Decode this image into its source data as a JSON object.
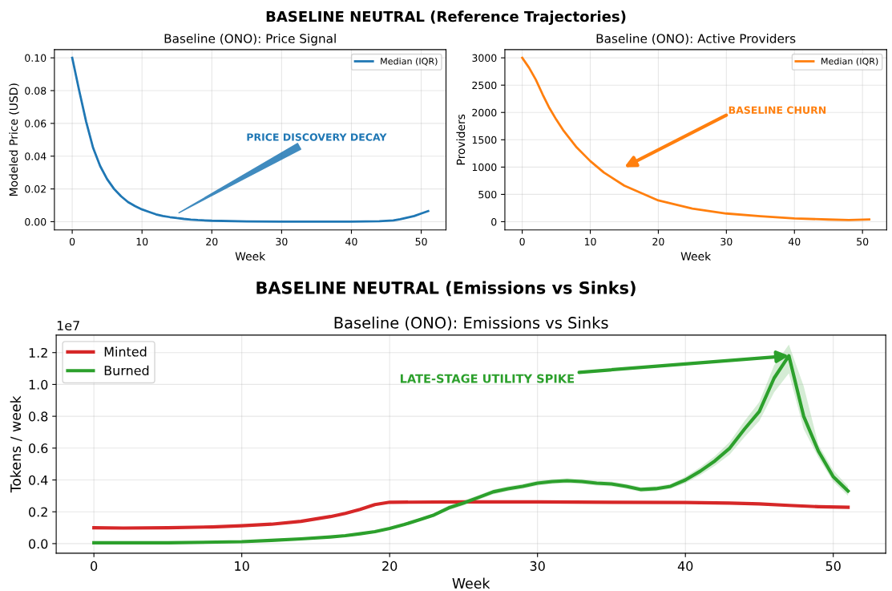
{
  "chart_data": [
    {
      "type": "line",
      "title": "Baseline (ONO): Price Signal",
      "xlabel": "Week",
      "ylabel": "Modeled Price (USD)",
      "xlim": [
        -2.55,
        53.55
      ],
      "ylim": [
        -0.005,
        0.105
      ],
      "xticks": [
        0,
        10,
        20,
        30,
        40,
        50
      ],
      "yticks": [
        {
          "value": 0,
          "label": "0.00"
        },
        {
          "value": 0.02,
          "label": "0.02"
        },
        {
          "value": 0.04,
          "label": "0.04"
        },
        {
          "value": 0.06,
          "label": "0.06"
        },
        {
          "value": 0.08,
          "label": "0.08"
        },
        {
          "value": 0.1,
          "label": "0.10"
        }
      ],
      "grid": true,
      "legend": "top right",
      "marker": "none",
      "line_style": "solid",
      "annotations": [
        "BASELINE NEUTRAL (Reference Trajectories)",
        "PRICE DISCOVERY DECAY"
      ],
      "series": [
        {
          "name": "Median (IQR)",
          "color": "#1f77b4",
          "x": [
            0,
            1,
            2,
            3,
            4,
            5,
            6,
            7,
            8,
            9,
            10,
            11,
            12,
            13,
            14,
            15,
            16,
            17,
            18,
            20,
            25,
            30,
            40,
            44,
            46,
            47,
            48,
            49,
            50,
            51
          ],
          "values": [
            0.1,
            0.08,
            0.061,
            0.045,
            0.034,
            0.026,
            0.02,
            0.0155,
            0.012,
            0.0095,
            0.0075,
            0.006,
            0.0045,
            0.0035,
            0.0028,
            0.0022,
            0.0017,
            0.0013,
            0.001,
            0.0006,
            0.0002,
            0.0001,
            0.0001,
            0.0003,
            0.0008,
            0.0015,
            0.0025,
            0.0035,
            0.005,
            0.0065
          ],
          "lower": [
            0.1,
            0.079,
            0.06,
            0.044,
            0.033,
            0.025,
            0.019,
            0.015,
            0.0117,
            0.0093,
            0.0074,
            0.006,
            0.0045,
            0.0035,
            0.0028,
            0.0022,
            0.0017,
            0.0013,
            0.001,
            0.0006,
            0.0002,
            0.0001,
            0.0001,
            0.0003,
            0.0008,
            0.0015,
            0.0025,
            0.0035,
            0.005,
            0.0065
          ],
          "upper": [
            0.1,
            0.081,
            0.062,
            0.046,
            0.035,
            0.027,
            0.021,
            0.016,
            0.0123,
            0.0097,
            0.0076,
            0.006,
            0.0045,
            0.0035,
            0.0028,
            0.0022,
            0.0017,
            0.0013,
            0.001,
            0.0006,
            0.0002,
            0.0001,
            0.0001,
            0.0003,
            0.0008,
            0.0015,
            0.0025,
            0.0035,
            0.005,
            0.0065
          ]
        }
      ]
    },
    {
      "type": "line",
      "title": "Baseline (ONO): Active Providers",
      "xlabel": "Week",
      "ylabel": "Providers",
      "xlim": [
        -2.55,
        53.55
      ],
      "ylim": [
        -150,
        3150
      ],
      "xticks": [
        0,
        10,
        20,
        30,
        40,
        50
      ],
      "yticks": [
        0,
        500,
        1000,
        1500,
        2000,
        2500,
        3000
      ],
      "grid": true,
      "legend": "top right",
      "marker": "none",
      "line_style": "solid",
      "annotations": [
        "BASELINE CHURN"
      ],
      "series": [
        {
          "name": "Median (IQR)",
          "color": "#ff7f0e",
          "x": [
            0,
            1,
            2,
            3,
            4,
            5,
            6,
            8,
            10,
            12,
            15,
            20,
            25,
            30,
            35,
            40,
            45,
            48,
            51
          ],
          "values": [
            3000,
            2820,
            2600,
            2330,
            2080,
            1870,
            1680,
            1360,
            1110,
            900,
            660,
            390,
            240,
            150,
            100,
            60,
            40,
            30,
            40
          ]
        }
      ]
    },
    {
      "type": "line",
      "title": "Baseline (ONO): Emissions vs Sinks",
      "xlabel": "Week",
      "ylabel": "Tokens / week",
      "xlim": [
        -2.55,
        53.55
      ],
      "ylim": [
        -0.06,
        1.31
      ],
      "xticks": [
        0,
        10,
        20,
        30,
        40,
        50
      ],
      "yticks": [
        {
          "value": 0,
          "label": "0.0"
        },
        0.2,
        0.4,
        0.6,
        0.8,
        {
          "value": 1,
          "label": "1.0"
        },
        1.2
      ],
      "grid": true,
      "legend": "top left",
      "marker": "none",
      "line_style": "solid",
      "annotations": [
        "BASELINE NEUTRAL (Emissions vs Sinks)",
        "1e7",
        {
          "text": "LATE-STAGE UTILITY SPIKE",
          "x": 47,
          "y": 1.18
        }
      ],
      "series": [
        {
          "name": "Minted",
          "color": "#d62728",
          "x": [
            0,
            2,
            5,
            8,
            10,
            12,
            14,
            16,
            17,
            18,
            19,
            20,
            25,
            30,
            35,
            40,
            43,
            45,
            47,
            49,
            51
          ],
          "values": [
            0.1,
            0.098,
            0.1,
            0.105,
            0.112,
            0.122,
            0.14,
            0.17,
            0.19,
            0.215,
            0.245,
            0.26,
            0.262,
            0.262,
            0.26,
            0.258,
            0.255,
            0.25,
            0.24,
            0.232,
            0.228
          ]
        },
        {
          "name": "Burned",
          "color": "#2ca02c",
          "x": [
            0,
            5,
            10,
            12,
            14,
            16,
            17,
            18,
            19,
            20,
            21,
            22,
            23,
            24,
            25,
            26,
            27,
            28,
            29,
            30,
            31,
            32,
            33,
            34,
            35,
            36,
            37,
            38,
            39,
            40,
            41,
            42,
            43,
            44,
            45,
            46,
            47,
            48,
            49,
            50,
            51
          ],
          "values": [
            0.005,
            0.005,
            0.012,
            0.02,
            0.03,
            0.042,
            0.05,
            0.062,
            0.075,
            0.095,
            0.12,
            0.15,
            0.18,
            0.225,
            0.255,
            0.29,
            0.325,
            0.345,
            0.36,
            0.38,
            0.39,
            0.395,
            0.39,
            0.38,
            0.375,
            0.36,
            0.34,
            0.345,
            0.36,
            0.4,
            0.455,
            0.52,
            0.6,
            0.72,
            0.83,
            1.04,
            1.18,
            0.8,
            0.58,
            0.42,
            0.33
          ],
          "lower": [
            0.005,
            0.005,
            0.012,
            0.02,
            0.03,
            0.042,
            0.05,
            0.06,
            0.072,
            0.09,
            0.113,
            0.142,
            0.17,
            0.21,
            0.24,
            0.275,
            0.31,
            0.33,
            0.345,
            0.365,
            0.375,
            0.38,
            0.375,
            0.365,
            0.36,
            0.345,
            0.325,
            0.33,
            0.345,
            0.38,
            0.43,
            0.49,
            0.56,
            0.67,
            0.77,
            0.95,
            1.07,
            0.72,
            0.54,
            0.39,
            0.3
          ],
          "upper": [
            0.005,
            0.005,
            0.012,
            0.02,
            0.03,
            0.042,
            0.05,
            0.064,
            0.078,
            0.1,
            0.127,
            0.158,
            0.19,
            0.24,
            0.27,
            0.305,
            0.34,
            0.36,
            0.375,
            0.395,
            0.405,
            0.41,
            0.405,
            0.395,
            0.39,
            0.375,
            0.355,
            0.36,
            0.375,
            0.42,
            0.48,
            0.55,
            0.64,
            0.77,
            0.89,
            1.12,
            1.25,
            0.99,
            0.62,
            0.46,
            0.36
          ]
        }
      ]
    }
  ]
}
